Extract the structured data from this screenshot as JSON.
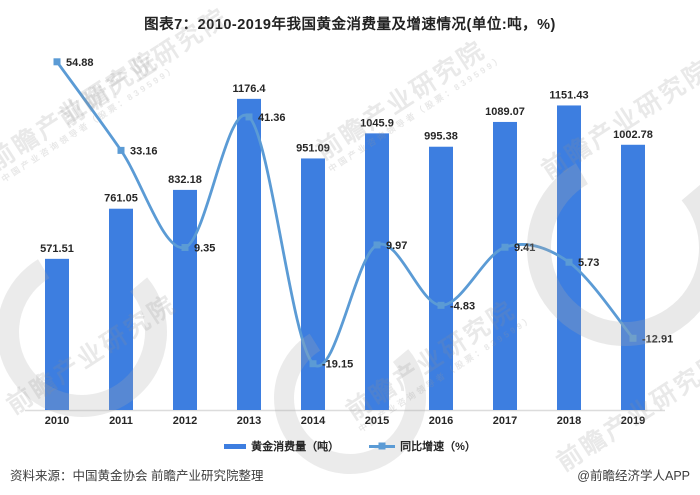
{
  "title": "图表7：2010-2019年我国黄金消费量及增速情况(单位:吨，%)",
  "chart_data": {
    "type": "bar+line",
    "title": "图表7：2010-2019年我国黄金消费量及增速情况(单位:吨，%)",
    "categories": [
      "2010",
      "2011",
      "2012",
      "2013",
      "2014",
      "2015",
      "2016",
      "2017",
      "2018",
      "2019"
    ],
    "series": [
      {
        "name": "黄金消费量（吨）",
        "type": "bar",
        "axis": "primary",
        "color": "#3d7ee0",
        "values": [
          571.51,
          761.05,
          832.18,
          1176.4,
          951.09,
          1045.9,
          995.38,
          1089.07,
          1151.43,
          1002.78
        ]
      },
      {
        "name": "同比增速（%）",
        "type": "line",
        "axis": "secondary",
        "color": "#5b9bd5",
        "values": [
          54.88,
          33.16,
          9.35,
          41.36,
          -19.15,
          9.97,
          -4.83,
          9.41,
          5.73,
          -12.91
        ]
      }
    ],
    "xlabel": "",
    "ylabel": "",
    "primary_ylim": [
      0,
      1380
    ],
    "secondary_ylim": [
      -30.5,
      59
    ],
    "grid": false,
    "legend_position": "bottom",
    "data_labels": true,
    "axis_line_color": "#dcdcdc",
    "label_color": "#262626"
  },
  "footer": {
    "source": "资料来源：中国黄金协会 前瞻产业研究院整理",
    "credit": "@前瞻经济学人APP"
  },
  "watermark": {
    "brand": "前瞻产业研究院",
    "tagline": "中国产业咨询领导者（股票：839599）"
  }
}
